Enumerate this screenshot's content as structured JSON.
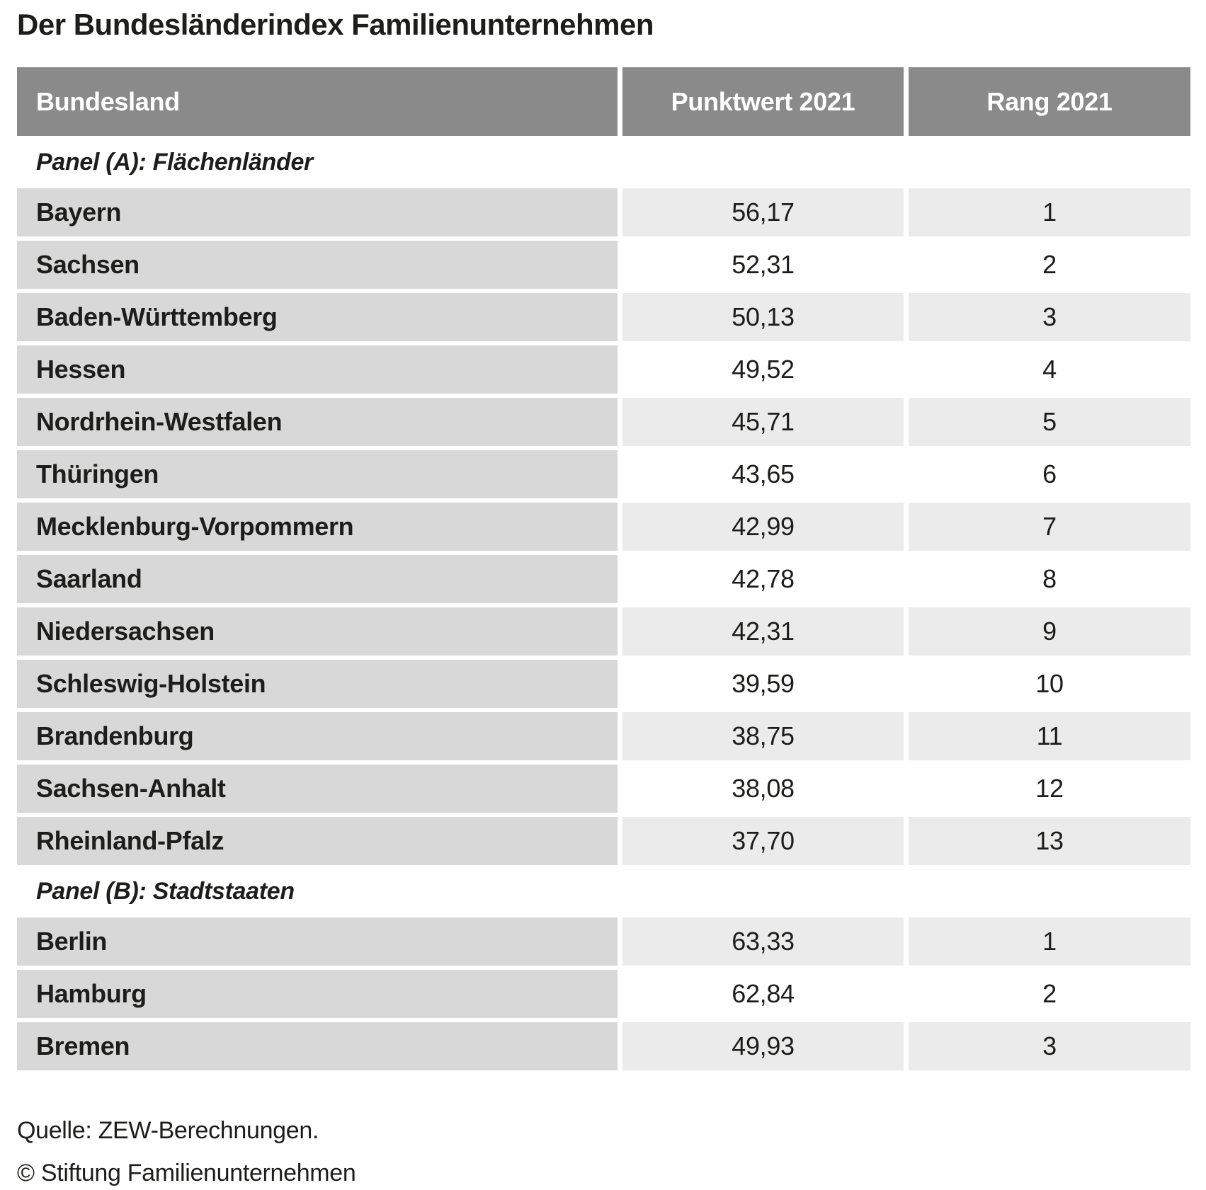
{
  "chart_data": {
    "type": "table",
    "title": "Der Bundesländerindex Familienunternehmen",
    "columns": [
      "Bundesland",
      "Punktwert 2021",
      "Rang 2021"
    ],
    "panels": [
      {
        "label": "Panel (A): Flächenländer",
        "rows": [
          {
            "bundesland": "Bayern",
            "punktwert": "56,17",
            "rang": "1"
          },
          {
            "bundesland": "Sachsen",
            "punktwert": "52,31",
            "rang": "2"
          },
          {
            "bundesland": "Baden-Württemberg",
            "punktwert": "50,13",
            "rang": "3"
          },
          {
            "bundesland": "Hessen",
            "punktwert": "49,52",
            "rang": "4"
          },
          {
            "bundesland": "Nordrhein-Westfalen",
            "punktwert": "45,71",
            "rang": "5"
          },
          {
            "bundesland": "Thüringen",
            "punktwert": "43,65",
            "rang": "6"
          },
          {
            "bundesland": "Mecklenburg-Vorpommern",
            "punktwert": "42,99",
            "rang": "7"
          },
          {
            "bundesland": "Saarland",
            "punktwert": "42,78",
            "rang": "8"
          },
          {
            "bundesland": "Niedersachsen",
            "punktwert": "42,31",
            "rang": "9"
          },
          {
            "bundesland": "Schleswig-Holstein",
            "punktwert": "39,59",
            "rang": "10"
          },
          {
            "bundesland": "Brandenburg",
            "punktwert": "38,75",
            "rang": "11"
          },
          {
            "bundesland": "Sachsen-Anhalt",
            "punktwert": "38,08",
            "rang": "12"
          },
          {
            "bundesland": "Rheinland-Pfalz",
            "punktwert": "37,70",
            "rang": "13"
          }
        ]
      },
      {
        "label": "Panel (B): Stadtstaaten",
        "rows": [
          {
            "bundesland": "Berlin",
            "punktwert": "63,33",
            "rang": "1"
          },
          {
            "bundesland": "Hamburg",
            "punktwert": "62,84",
            "rang": "2"
          },
          {
            "bundesland": "Bremen",
            "punktwert": "49,93",
            "rang": "3"
          }
        ]
      }
    ]
  },
  "footer": {
    "source": "Quelle: ZEW-Berechnungen.",
    "copyright": "© Stiftung Familienunternehmen"
  },
  "colors": {
    "page_bg": "#ffffff",
    "header_bg": "#8a8a8a",
    "header_text": "#ffffff",
    "bundesland_cell_bg": "#d8d8d8",
    "value_cell_bg_light": "#ebebeb",
    "value_cell_bg_white": "#ffffff",
    "text": "#1d1d1b"
  }
}
